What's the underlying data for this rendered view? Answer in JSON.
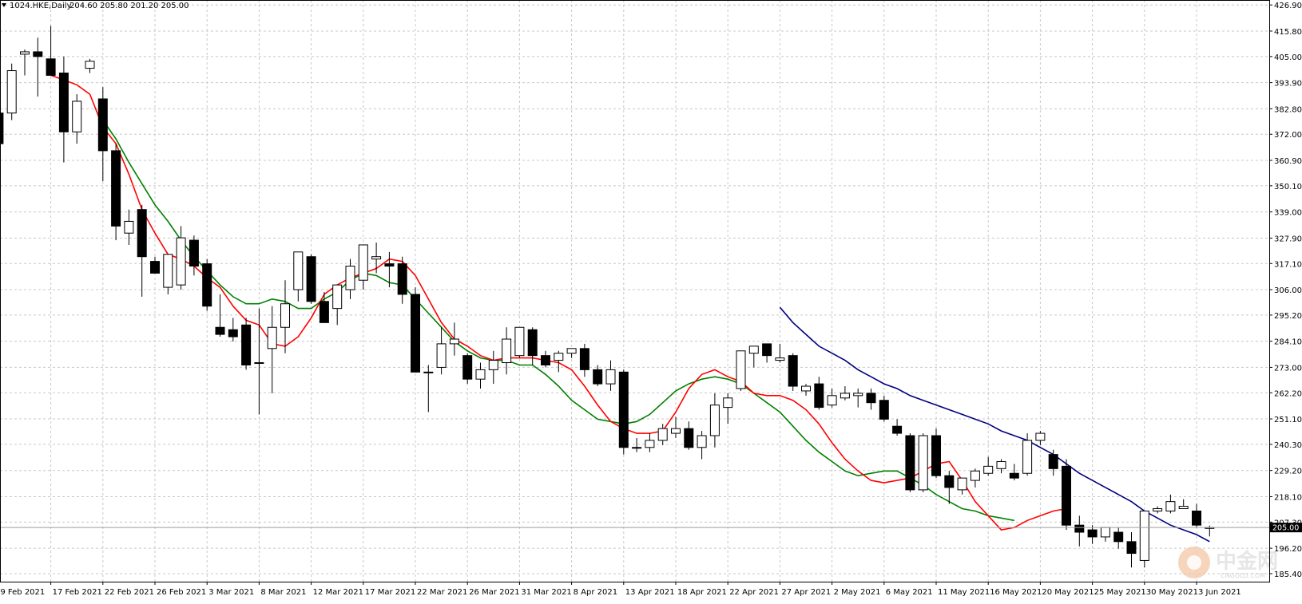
{
  "header": {
    "symbol_tf": "1024.HKE,Daily",
    "ohlc": "204.60 205.80 201.20 205.00"
  },
  "current_price": "205.00",
  "axis": {
    "y_ticks": [
      "426.90",
      "415.80",
      "405.00",
      "393.90",
      "382.80",
      "372.00",
      "360.90",
      "350.10",
      "339.00",
      "327.90",
      "317.10",
      "306.00",
      "295.20",
      "284.10",
      "273.00",
      "262.20",
      "251.10",
      "240.30",
      "229.20",
      "218.10",
      "207.30",
      "196.20",
      "185.40"
    ],
    "x_labels": [
      {
        "i": 0,
        "label": "9 Feb 2021"
      },
      {
        "i": 4,
        "label": "17 Feb 2021"
      },
      {
        "i": 8,
        "label": "22 Feb 2021"
      },
      {
        "i": 12,
        "label": "26 Feb 2021"
      },
      {
        "i": 16,
        "label": "3 Mar 2021"
      },
      {
        "i": 20,
        "label": "8 Mar 2021"
      },
      {
        "i": 24,
        "label": "12 Mar 2021"
      },
      {
        "i": 28,
        "label": "17 Mar 2021"
      },
      {
        "i": 32,
        "label": "22 Mar 2021"
      },
      {
        "i": 36,
        "label": "26 Mar 2021"
      },
      {
        "i": 40,
        "label": "31 Mar 2021"
      },
      {
        "i": 44,
        "label": "8 Apr 2021"
      },
      {
        "i": 48,
        "label": "13 Apr 2021"
      },
      {
        "i": 52,
        "label": "18 Apr 2021"
      },
      {
        "i": 56,
        "label": "22 Apr 2021"
      },
      {
        "i": 60,
        "label": "27 Apr 2021"
      },
      {
        "i": 64,
        "label": "2 May 2021"
      },
      {
        "i": 68,
        "label": "6 May 2021"
      },
      {
        "i": 72,
        "label": "11 May 2021"
      },
      {
        "i": 76,
        "label": "16 May 2021"
      },
      {
        "i": 80,
        "label": "20 May 2021"
      },
      {
        "i": 84,
        "label": "25 May 2021"
      },
      {
        "i": 88,
        "label": "30 May 2021"
      },
      {
        "i": 92,
        "label": "3 Jun 2021"
      }
    ]
  },
  "watermark": {
    "text": "中金网",
    "sub": "CNGOLD.COM"
  },
  "colors": {
    "bull_fill": "#ffffff",
    "bear_fill": "#000000",
    "ma_fast": "#ff0000",
    "ma_mid": "#008000",
    "ma_slow": "#000080",
    "grid": "#c8c8c8",
    "price_line": "#9e9e9e"
  },
  "chart_data": {
    "type": "candlestick",
    "title": "1024.HKE,Daily",
    "ylim": [
      182,
      429
    ],
    "grid": true,
    "candles": [
      [
        381,
        400,
        368,
        368
      ],
      [
        381,
        402,
        378,
        399
      ],
      [
        406,
        408,
        397,
        407
      ],
      [
        407,
        413,
        388,
        405
      ],
      [
        404,
        418,
        399,
        397
      ],
      [
        398,
        405,
        360,
        373
      ],
      [
        373,
        389,
        368,
        386
      ],
      [
        400,
        404,
        398,
        403
      ],
      [
        387,
        392,
        352,
        365
      ],
      [
        365,
        368,
        327,
        333
      ],
      [
        330,
        340,
        325,
        335
      ],
      [
        340,
        342,
        303,
        320
      ],
      [
        318,
        320,
        313,
        313
      ],
      [
        307,
        320,
        304,
        321
      ],
      [
        308,
        333,
        306,
        328
      ],
      [
        327,
        329,
        312,
        316
      ],
      [
        317,
        319,
        297,
        299
      ],
      [
        290,
        304,
        286,
        287
      ],
      [
        289,
        294,
        284,
        286
      ],
      [
        291,
        294,
        272,
        274
      ],
      [
        275,
        298,
        253,
        275
      ],
      [
        281,
        299,
        262,
        290
      ],
      [
        290,
        310,
        279,
        300
      ],
      [
        306,
        321,
        301,
        322
      ],
      [
        320,
        321,
        300,
        301
      ],
      [
        301,
        305,
        294,
        292
      ],
      [
        298,
        306,
        291,
        308
      ],
      [
        306,
        319,
        302,
        316
      ],
      [
        310,
        325,
        306,
        325
      ],
      [
        319,
        326,
        313,
        320
      ],
      [
        317,
        322,
        307,
        316
      ],
      [
        317,
        320,
        300,
        304
      ],
      [
        304,
        307,
        272,
        271
      ],
      [
        271,
        274,
        254,
        271
      ],
      [
        273,
        290,
        270,
        283
      ],
      [
        283,
        292,
        278,
        285
      ],
      [
        278,
        279,
        266,
        268
      ],
      [
        268,
        275,
        264,
        272
      ],
      [
        272,
        280,
        266,
        276
      ],
      [
        275,
        290,
        270,
        285
      ],
      [
        278,
        289,
        277,
        290
      ],
      [
        289,
        290,
        274,
        278
      ],
      [
        278,
        280,
        273,
        274
      ],
      [
        276,
        280,
        271,
        279
      ],
      [
        279,
        280,
        277,
        281
      ],
      [
        281,
        283,
        269,
        272
      ],
      [
        272,
        274,
        265,
        266
      ],
      [
        266,
        276,
        263,
        272
      ],
      [
        271,
        272,
        236,
        239
      ],
      [
        239,
        243,
        237,
        239
      ],
      [
        239,
        245,
        237,
        242
      ],
      [
        242,
        249,
        240,
        247
      ],
      [
        245,
        252,
        243,
        247
      ],
      [
        247,
        250,
        238,
        239
      ],
      [
        239,
        246,
        234,
        244
      ],
      [
        244,
        262,
        239,
        257
      ],
      [
        256,
        262,
        249,
        260
      ],
      [
        264,
        280,
        263,
        280
      ],
      [
        279,
        282,
        273,
        282
      ],
      [
        283,
        283,
        275,
        278
      ],
      [
        276,
        283,
        275,
        277
      ],
      [
        278,
        279,
        263,
        265
      ],
      [
        263,
        266,
        261,
        265
      ],
      [
        266,
        269,
        255,
        256
      ],
      [
        257,
        264,
        256,
        261
      ],
      [
        260,
        265,
        259,
        262
      ],
      [
        261,
        264,
        256,
        262
      ],
      [
        262,
        264,
        255,
        258
      ],
      [
        259,
        261,
        250,
        251
      ],
      [
        248,
        251,
        244,
        245
      ],
      [
        244,
        245,
        220,
        221
      ],
      [
        221,
        245,
        220,
        244
      ],
      [
        244,
        247,
        226,
        227
      ],
      [
        227,
        229,
        215,
        222
      ],
      [
        221,
        226,
        219,
        226
      ],
      [
        225,
        230,
        222,
        229
      ],
      [
        228,
        235,
        227,
        231
      ],
      [
        230,
        234,
        228,
        233
      ],
      [
        228,
        232,
        225,
        226
      ],
      [
        228,
        245,
        227,
        242
      ],
      [
        242,
        246,
        240,
        245
      ],
      [
        236,
        238,
        227,
        230
      ],
      [
        231,
        234,
        204,
        206
      ],
      [
        206,
        210,
        197,
        203
      ],
      [
        204,
        206,
        198,
        201
      ],
      [
        201,
        205,
        199,
        205
      ],
      [
        203,
        205,
        196,
        199
      ],
      [
        199,
        203,
        188,
        194
      ],
      [
        191,
        212,
        188,
        212
      ],
      [
        212,
        214,
        211,
        213
      ],
      [
        212,
        219,
        211,
        216
      ],
      [
        213,
        217,
        213,
        214
      ],
      [
        212,
        215,
        205,
        206
      ],
      [
        204.6,
        205.8,
        201.2,
        205
      ]
    ],
    "ma_fast": {
      "start": 4,
      "values": [
        397,
        395,
        393,
        389,
        375,
        368,
        355,
        340,
        330,
        321,
        319,
        316,
        311,
        307,
        299,
        293,
        291,
        283,
        282,
        286,
        294,
        304,
        308,
        311,
        313,
        315,
        319,
        318,
        312,
        302,
        292,
        285,
        282,
        278,
        276,
        277,
        277,
        277,
        276,
        275,
        272,
        265,
        257,
        250,
        247,
        245,
        245,
        246,
        254,
        264,
        270,
        272,
        269,
        267,
        262,
        261,
        261,
        259,
        255,
        249,
        241,
        234,
        229,
        225,
        224,
        225,
        226,
        229,
        232,
        233,
        225,
        216,
        210,
        204,
        205,
        208,
        210,
        212,
        213
      ]
    },
    "ma_mid": {
      "start": 8,
      "values": [
        378,
        370,
        360,
        351,
        342,
        335,
        327,
        320,
        314,
        308,
        303,
        300,
        300,
        302,
        301,
        298,
        298,
        302,
        305,
        310,
        313,
        312,
        309,
        308,
        302,
        296,
        290,
        284,
        280,
        277,
        276,
        276,
        274,
        274,
        270,
        265,
        259,
        255,
        251,
        250,
        249,
        250,
        253,
        258,
        263,
        266,
        268,
        269,
        268,
        266,
        262,
        258,
        254,
        248,
        242,
        237,
        233,
        229,
        227,
        228,
        229,
        229,
        226,
        223,
        219,
        216,
        213,
        212,
        210,
        209,
        208
      ]
    },
    "ma_slow": {
      "start": 60,
      "values": [
        298.5,
        292,
        287,
        282,
        279,
        276,
        272,
        269,
        266,
        264,
        261,
        259,
        257,
        255,
        253,
        251,
        249,
        246,
        244,
        242,
        239,
        236,
        232,
        228,
        225,
        222,
        219,
        216,
        212,
        209,
        206,
        204,
        202,
        199
      ]
    }
  }
}
